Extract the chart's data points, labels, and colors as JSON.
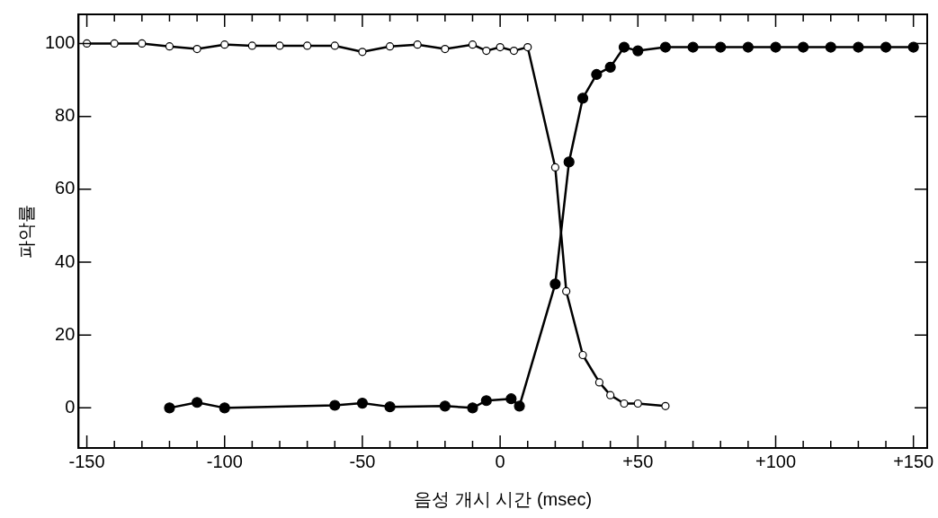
{
  "chart_data": {
    "type": "line",
    "xlabel": "음성 개시 시간 (msec)",
    "ylabel": "파악률",
    "marker": "circle",
    "line_style": "solid",
    "grid": false,
    "legend": false,
    "xlim": [
      -153,
      155
    ],
    "ylim": [
      -11,
      108
    ],
    "xticks": [
      -150,
      {
        "value": -140,
        "label": null
      },
      {
        "value": -130,
        "label": null
      },
      {
        "value": -120,
        "label": null
      },
      {
        "value": -110,
        "label": null
      },
      -100,
      {
        "value": -90,
        "label": null
      },
      {
        "value": -80,
        "label": null
      },
      {
        "value": -70,
        "label": null
      },
      {
        "value": -60,
        "label": null
      },
      -50,
      {
        "value": -40,
        "label": null
      },
      {
        "value": -30,
        "label": null
      },
      {
        "value": -20,
        "label": null
      },
      {
        "value": -10,
        "label": null
      },
      0,
      {
        "value": 10,
        "label": null
      },
      {
        "value": 20,
        "label": null
      },
      {
        "value": 30,
        "label": null
      },
      {
        "value": 40,
        "label": null
      },
      {
        "value": 50,
        "label": "+50"
      },
      {
        "value": 60,
        "label": null
      },
      {
        "value": 70,
        "label": null
      },
      {
        "value": 80,
        "label": null
      },
      {
        "value": 90,
        "label": null
      },
      {
        "value": 100,
        "label": "+100"
      },
      {
        "value": 110,
        "label": null
      },
      {
        "value": 120,
        "label": null
      },
      {
        "value": 130,
        "label": null
      },
      {
        "value": 140,
        "label": null
      },
      {
        "value": 150,
        "label": "+150"
      }
    ],
    "yticks": [
      0,
      20,
      40,
      60,
      80,
      100
    ],
    "series": [
      {
        "color": "#000000",
        "x": [
          -150,
          -140,
          -130,
          -120,
          -110,
          -100,
          -90,
          -80,
          -70,
          -60,
          -50,
          -40,
          -30,
          -20,
          -10,
          -5,
          0,
          5,
          10,
          20,
          24,
          30,
          36,
          40,
          45,
          50,
          60
        ],
        "values": [
          100,
          100,
          100,
          99.2,
          98.5,
          99.7,
          99.4,
          99.4,
          99.4,
          99.4,
          97.7,
          99.2,
          99.7,
          98.5,
          99.7,
          98,
          99,
          98,
          99,
          66,
          32,
          14.5,
          7,
          3.5,
          1.2,
          1.2,
          0.5
        ]
      },
      {
        "color": "#000000",
        "x": [
          -120,
          -110,
          -100,
          -60,
          -50,
          -40,
          -20,
          -10,
          -5,
          4,
          7,
          20,
          25,
          30,
          35,
          40,
          45,
          50,
          60,
          70,
          80,
          90,
          100,
          110,
          120,
          130,
          140,
          150
        ],
        "values": [
          0,
          1.5,
          0,
          0.7,
          1.3,
          0.3,
          0.5,
          0,
          2,
          2.5,
          0.5,
          34,
          67.5,
          85,
          91.5,
          93.5,
          99,
          98,
          99,
          99,
          99,
          99,
          99,
          99,
          99,
          99,
          99,
          99
        ]
      }
    ]
  }
}
